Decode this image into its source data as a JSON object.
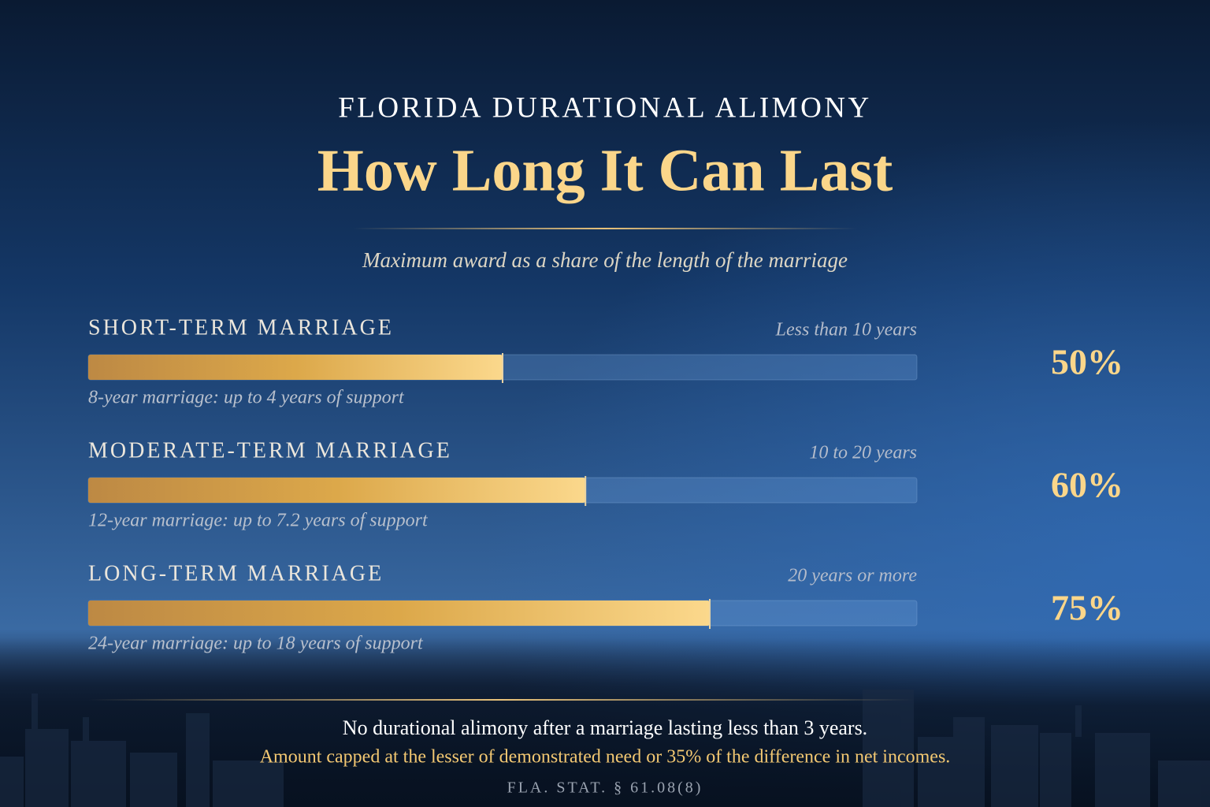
{
  "chart_data": {
    "type": "bar",
    "orientation": "horizontal",
    "kicker": "FLORIDA DURATIONAL ALIMONY",
    "title": "How Long It Can Last",
    "subtitle": "Maximum award as a share of the length of the marriage",
    "categories": [
      "SHORT-TERM MARRIAGE",
      "MODERATE-TERM MARRIAGE",
      "LONG-TERM MARRIAGE"
    ],
    "ranges": [
      "Less than 10 years",
      "10 to 20 years",
      "20 years or more"
    ],
    "notes": [
      "8-year marriage: up to 4 years of support",
      "12-year marriage: up to 7.2 years of support",
      "24-year marriage: up to 18 years of support"
    ],
    "values": [
      50,
      60,
      75
    ],
    "value_labels": [
      "50%",
      "60%",
      "75%"
    ],
    "xlim": [
      0,
      100
    ],
    "color": "#fbd88c"
  },
  "footer": {
    "lines": [
      "No durational alimony after a marriage lasting less than 3 years.",
      "Amount capped at the lesser of demonstrated need or 35% of the difference in net incomes."
    ],
    "citation": "FLA. STAT. § 61.08(8)"
  }
}
